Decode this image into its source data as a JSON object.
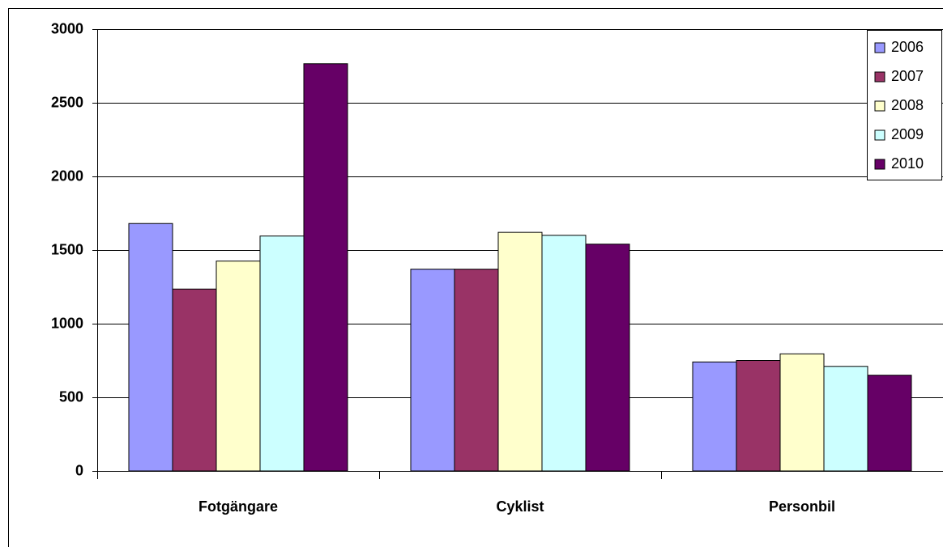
{
  "chart_data": {
    "type": "bar",
    "categories": [
      "Fotgängare",
      "Cyklist",
      "Personbil"
    ],
    "series": [
      {
        "name": "2006",
        "color": "#9999ff",
        "values": [
          1680,
          1370,
          740
        ]
      },
      {
        "name": "2007",
        "color": "#993366",
        "values": [
          1235,
          1370,
          750
        ]
      },
      {
        "name": "2008",
        "color": "#ffffcc",
        "values": [
          1425,
          1620,
          795
        ]
      },
      {
        "name": "2009",
        "color": "#ccffff",
        "values": [
          1595,
          1600,
          710
        ]
      },
      {
        "name": "2010",
        "color": "#660066",
        "values": [
          2765,
          1540,
          650
        ]
      }
    ],
    "ylim": [
      0,
      3000
    ],
    "yticks": [
      0,
      500,
      1000,
      1500,
      2000,
      2500,
      3000
    ],
    "grid": true,
    "legend": "upper right"
  }
}
